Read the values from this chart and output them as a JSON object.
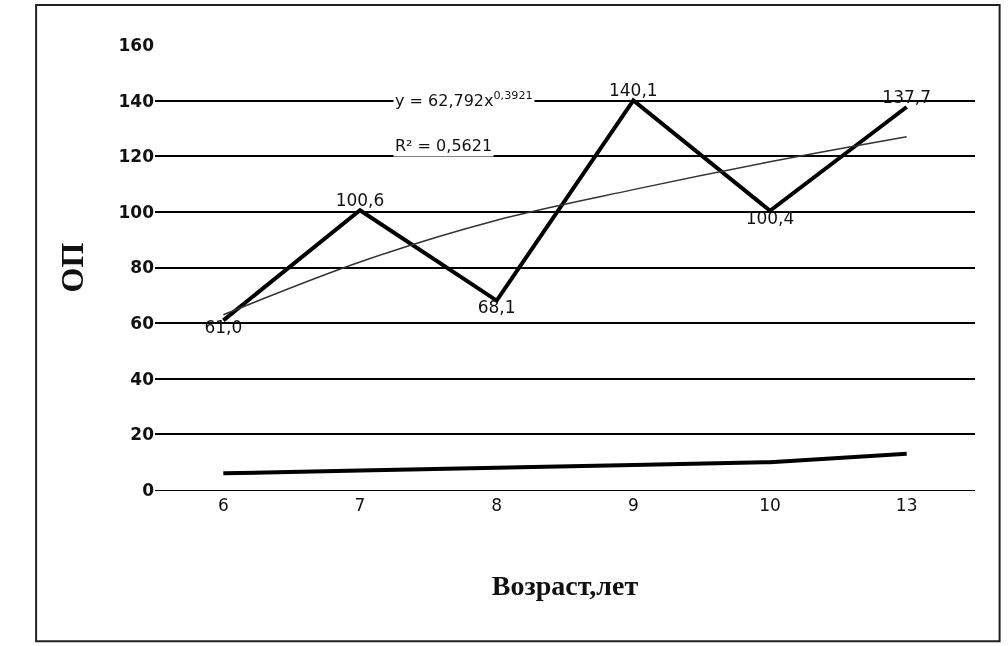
{
  "chart_data": {
    "type": "line",
    "xlabel": "Возраст,лет",
    "ylabel": "ОП",
    "categories": [
      "6",
      "7",
      "8",
      "9",
      "10",
      "13"
    ],
    "series": [
      {
        "color": "#000000",
        "values": [
          61.0,
          100.6,
          68.1,
          140.1,
          100.4,
          137.7
        ],
        "value_labels": [
          "61,0",
          "100,6",
          "68,1",
          "140,1",
          "100,4",
          "137,7"
        ]
      },
      {
        "color": "#000000",
        "values": [
          6,
          7,
          8,
          9,
          10,
          13
        ]
      },
      {
        "color": "#333333",
        "values": [
          63,
          82,
          97,
          108,
          118,
          127
        ]
      }
    ],
    "annotations": [
      "y = 62,792x$^{0,3921}$",
      "R² = 0,5621"
    ],
    "ylim": [
      0,
      160
    ],
    "yticks": [
      0,
      20,
      40,
      60,
      80,
      100,
      120,
      140,
      160
    ],
    "grid": "y",
    "marker": "none",
    "line_style": "solid"
  }
}
